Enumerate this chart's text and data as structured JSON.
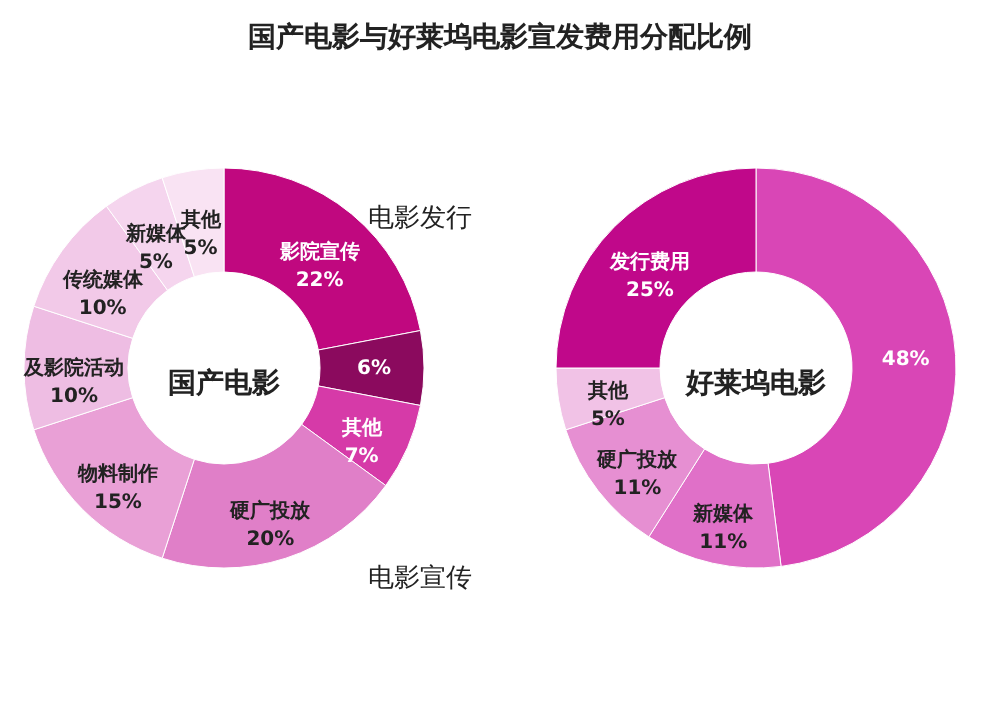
{
  "chart_data": [
    {
      "type": "donut",
      "title": "国产电影与好莱坞电影宣发费用分配比例",
      "categories": [
        "影院宣传",
        null,
        "其他",
        "硬广投放",
        "物料制作",
        "及影院活动",
        "传统媒体",
        "新媒体",
        "其他"
      ],
      "values": [
        22,
        6,
        7,
        20,
        15,
        10,
        10,
        5,
        5
      ],
      "value_labels": [
        "22%",
        "6%",
        "7%",
        "20%",
        "15%",
        "10%",
        "10%",
        "5%",
        "5%"
      ],
      "colors": [
        "#c0087f",
        "#8b0a5e",
        "#d63aa8",
        "#e07fc8",
        "#e9a0d6",
        "#eebde3",
        "#f2c9e8",
        "#f5d5ee",
        "#f9e3f3"
      ],
      "annotations": [
        "国产电影",
        "电影发行",
        "电影宣传"
      ]
    },
    {
      "type": "donut",
      "categories": [
        null,
        "新媒体",
        "硬广投放",
        "其他",
        "发行费用"
      ],
      "values": [
        48,
        11,
        11,
        5,
        25
      ],
      "value_labels": [
        "48%",
        "11%",
        "11%",
        "5%",
        "25%"
      ],
      "colors": [
        "#d946b6",
        "#e070c8",
        "#e68fd2",
        "#f1c2e6",
        "#c0088a"
      ],
      "annotations": [
        "好莱坞电影"
      ]
    }
  ]
}
